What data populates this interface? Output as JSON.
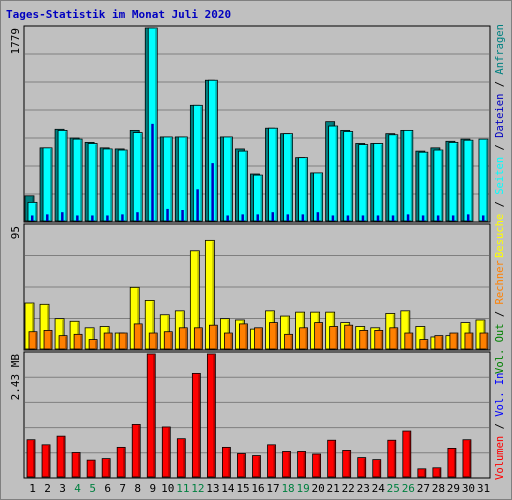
{
  "title": "Tages-Statistik im Monat Juli 2020",
  "colors": {
    "background": "#c0c0c0",
    "panel": "#c0c0c0",
    "grid": "#7f7f7f",
    "frame": "#000000",
    "title": "#0000c0",
    "anfragen": "#008080",
    "anfragen_dark": "#006060",
    "dateien": "#00ffff",
    "seiten": "#0000c0",
    "besuche": "#ffff00",
    "rechner": "#ff8000",
    "vol_in": "#0000ff",
    "vol_out": "#008000",
    "volumen": "#ff0000",
    "weekend_day": "#008040",
    "weekday": "#000000"
  },
  "axis_max_labels": {
    "top": "1779",
    "middle": "95",
    "bottom": "2.43 MB"
  },
  "right_legend": {
    "top": [
      "Anfragen",
      "Dateien",
      "Seiten",
      "Besuche"
    ],
    "middle": [
      "Rechner",
      "Vol. Out"
    ],
    "bottom": [
      "Vol. In",
      "Volumen"
    ],
    "separator": " / "
  },
  "chart_data": {
    "type": "bar",
    "categories": [
      "1",
      "2",
      "3",
      "4",
      "5",
      "6",
      "7",
      "8",
      "9",
      "10",
      "11",
      "12",
      "13",
      "14",
      "15",
      "16",
      "17",
      "18",
      "19",
      "20",
      "21",
      "22",
      "23",
      "24",
      "25",
      "26",
      "27",
      "28",
      "29",
      "30",
      "31"
    ],
    "weekend_days": [
      "4",
      "5",
      "11",
      "12",
      "18",
      "19",
      "25",
      "26"
    ],
    "panels": [
      {
        "name": "top",
        "ylim": [
          0,
          1779
        ],
        "series": [
          {
            "name": "Anfragen",
            "values": [
              240,
              680,
              850,
              770,
              730,
              680,
              670,
              840,
              1779,
              780,
              780,
              1070,
              1300,
              780,
              670,
              440,
              860,
              810,
              590,
              450,
              920,
              840,
              720,
              720,
              810,
              840,
              650,
              680,
              740,
              760,
              0
            ]
          },
          {
            "name": "Dateien",
            "values": [
              180,
              680,
              840,
              760,
              720,
              670,
              660,
              820,
              1779,
              780,
              780,
              1070,
              1300,
              780,
              650,
              430,
              860,
              810,
              590,
              450,
              880,
              830,
              710,
              720,
              800,
              840,
              640,
              660,
              730,
              750,
              760
            ]
          },
          {
            "name": "Seiten",
            "values": [
              60,
              70,
              90,
              60,
              60,
              60,
              70,
              90,
              900,
              120,
              110,
              300,
              540,
              60,
              70,
              70,
              90,
              70,
              70,
              90,
              60,
              60,
              60,
              60,
              60,
              70,
              60,
              60,
              60,
              70,
              60
            ]
          }
        ]
      },
      {
        "name": "middle",
        "ylim": [
          0,
          95
        ],
        "series": [
          {
            "name": "Besuche",
            "values": [
              36,
              35,
              24,
              22,
              17,
              18,
              13,
              48,
              38,
              27,
              30,
              76,
              84,
              24,
              23,
              16,
              30,
              26,
              29,
              29,
              29,
              21,
              18,
              17,
              28,
              30,
              18,
              10,
              11,
              21,
              23
            ]
          },
          {
            "name": "Rechner",
            "values": [
              14,
              15,
              11,
              12,
              8,
              13,
              13,
              20,
              13,
              14,
              17,
              17,
              19,
              13,
              20,
              17,
              21,
              12,
              17,
              21,
              18,
              19,
              15,
              15,
              17,
              13,
              8,
              11,
              13,
              13,
              13
            ]
          }
        ]
      },
      {
        "name": "bottom",
        "ylim": [
          0,
          2.43
        ],
        "unit": "MB",
        "series": [
          {
            "name": "Volumen",
            "values": [
              0.75,
              0.65,
              0.82,
              0.5,
              0.35,
              0.38,
              0.6,
              1.05,
              2.43,
              1.0,
              0.77,
              2.05,
              2.43,
              0.6,
              0.48,
              0.44,
              0.65,
              0.52,
              0.52,
              0.47,
              0.74,
              0.54,
              0.4,
              0.36,
              0.74,
              0.92,
              0.18,
              0.2,
              0.58,
              0.75,
              0.0
            ]
          }
        ]
      }
    ]
  }
}
